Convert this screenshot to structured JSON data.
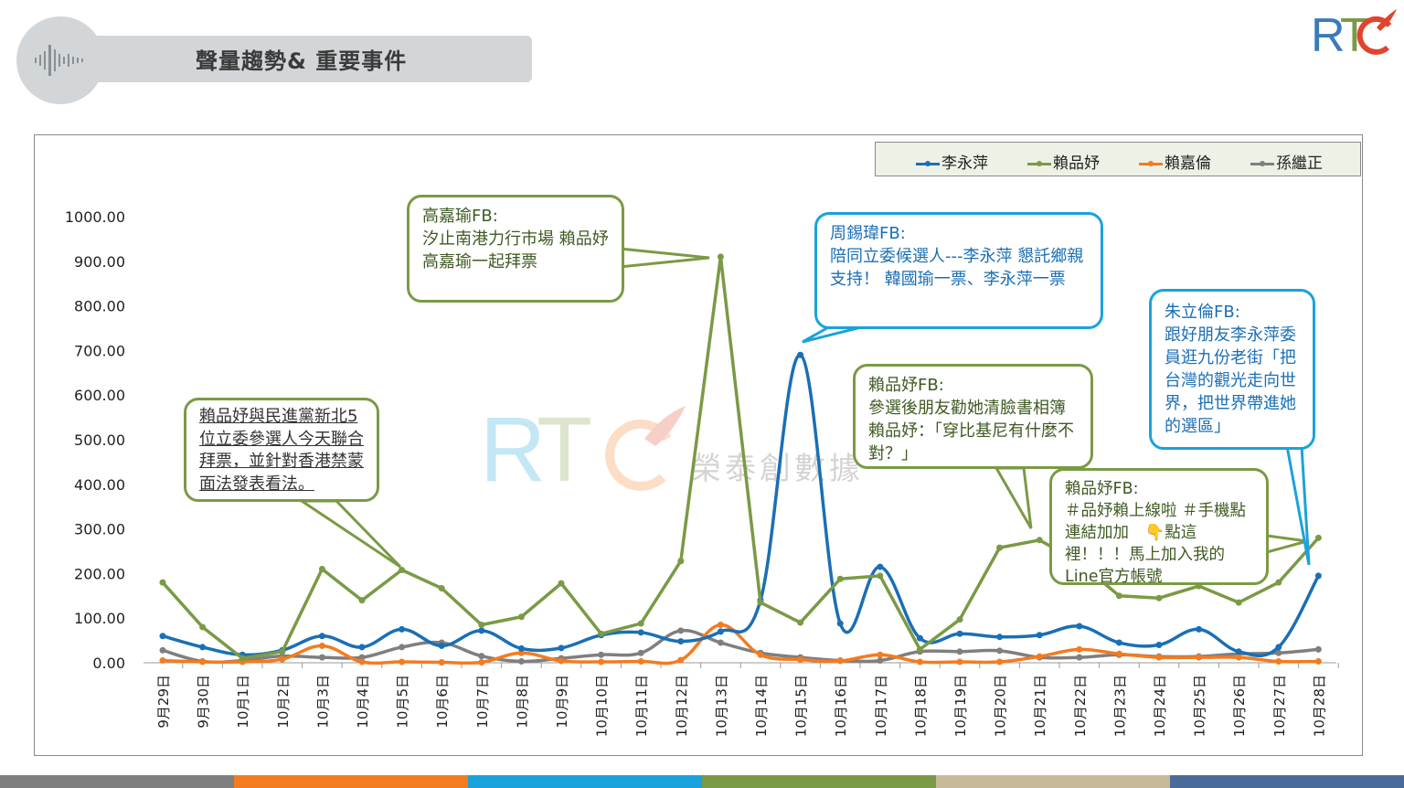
{
  "header": {
    "title": "聲量趨勢& 重要事件",
    "icon": "sound-wave-icon"
  },
  "logo": {
    "text": "RTC"
  },
  "watermark": {
    "text": "RTC",
    "subtext": "榮泰創數據"
  },
  "colors": {
    "li": "#1a6fb5",
    "lai_pin": "#7a9a45",
    "lai_jia": "#f47b20",
    "sun": "#7f7f7f",
    "footer": [
      "#7f7f7f",
      "#f47b20",
      "#1aa2dc",
      "#7a9a45",
      "#c8b89a",
      "#4a6a9a"
    ]
  },
  "legend": [
    "李永萍",
    "賴品妤",
    "賴嘉倫",
    "孫繼正"
  ],
  "chart_data": {
    "type": "line",
    "categories": [
      "9月29日",
      "9月30日",
      "10月1日",
      "10月2日",
      "10月3日",
      "10月4日",
      "10月5日",
      "10月6日",
      "10月7日",
      "10月8日",
      "10月9日",
      "10月10日",
      "10月11日",
      "10月12日",
      "10月13日",
      "10月14日",
      "10月15日",
      "10月16日",
      "10月17日",
      "10月18日",
      "10月19日",
      "10月20日",
      "10月21日",
      "10月22日",
      "10月23日",
      "10月24日",
      "10月25日",
      "10月26日",
      "10月27日",
      "10月28日"
    ],
    "ylim": [
      0,
      1000
    ],
    "yticks": [
      "0.00",
      "100.00",
      "200.00",
      "300.00",
      "400.00",
      "500.00",
      "600.00",
      "700.00",
      "800.00",
      "900.00",
      "1000.00"
    ],
    "series": [
      {
        "name": "李永萍",
        "color": "#1a6fb5",
        "smooth": true,
        "values": [
          60,
          35,
          18,
          28,
          60,
          35,
          75,
          38,
          72,
          32,
          33,
          62,
          68,
          48,
          70,
          140,
          690,
          88,
          215,
          55,
          65,
          58,
          62,
          82,
          45,
          40,
          75,
          25,
          35,
          195
        ]
      },
      {
        "name": "賴品妤",
        "color": "#7a9a45",
        "smooth": false,
        "values": [
          180,
          80,
          10,
          25,
          210,
          140,
          208,
          167,
          85,
          103,
          178,
          65,
          88,
          228,
          910,
          135,
          90,
          188,
          195,
          30,
          97,
          258,
          275,
          225,
          150,
          145,
          172,
          135,
          180,
          280
        ]
      },
      {
        "name": "賴嘉倫",
        "color": "#f47b20",
        "smooth": true,
        "values": [
          5,
          2,
          2,
          8,
          38,
          2,
          2,
          1,
          1,
          22,
          4,
          2,
          3,
          6,
          85,
          18,
          7,
          4,
          18,
          2,
          2,
          2,
          14,
          30,
          20,
          12,
          12,
          12,
          3,
          3
        ]
      },
      {
        "name": "孫繼正",
        "color": "#7f7f7f",
        "smooth": true,
        "values": [
          28,
          3,
          5,
          15,
          12,
          12,
          35,
          45,
          15,
          3,
          10,
          18,
          22,
          72,
          45,
          22,
          12,
          5,
          5,
          25,
          25,
          27,
          12,
          12,
          18,
          14,
          14,
          20,
          22,
          30
        ]
      }
    ]
  },
  "annotations": [
    {
      "id": "ann1",
      "style": "green",
      "head": "高嘉瑜FB:",
      "body": "汐止南港力行市場 賴品妤高嘉瑜一起拜票"
    },
    {
      "id": "ann2",
      "style": "blue",
      "head": "周錫瑋FB:",
      "body": "陪同立委候選人---李永萍 懇託鄉親支持！ 韓國瑜一票、李永萍一票"
    },
    {
      "id": "ann3",
      "style": "green",
      "head": "",
      "body": "賴品妤與民進黨新北5 位立委參選人今天聯合拜票，並針對香港禁蒙面法發表看法。"
    },
    {
      "id": "ann4",
      "style": "green",
      "head": "賴品妤FB:",
      "body": "參選後朋友勸她清臉書相簿　賴品妤：「穿比基尼有什麼不對？」"
    },
    {
      "id": "ann5",
      "style": "green",
      "head": "賴品妤FB:",
      "body": "＃品妤賴上線啦 ＃手機點連結加加　👇點這裡！！！馬上加入我的Line官方帳號"
    },
    {
      "id": "ann6",
      "style": "blue",
      "head": "朱立倫FB:",
      "body": "跟好朋友李永萍委員逛九份老街「把台灣的觀光走向世界，把世界帶進她的選區」"
    }
  ]
}
